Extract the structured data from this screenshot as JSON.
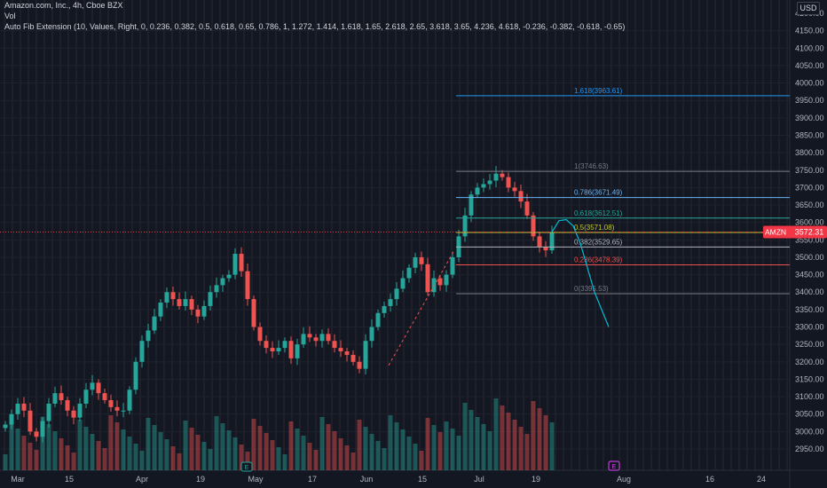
{
  "header": {
    "symbol_line": "Amazon.com, Inc., 4h, Cboe BZX",
    "vol_label": "Vol",
    "indicator_line": "Auto Fib Extension (10, Values, Right, 0, 0.236, 0.382, 0.5, 0.618, 0.65, 0.786, 1, 1.272, 1.414, 1.618, 1.65, 2.618, 2.65, 3.618, 3.65, 4.236, 4.618, -0.236, -0.382, -0.618, -0.65)",
    "currency": "USD"
  },
  "price_axis": {
    "top_label": "4200.00",
    "labels": [
      "4150.00",
      "4100.00",
      "4050.00",
      "4000.00",
      "3950.00",
      "3900.00",
      "3850.00",
      "3800.00",
      "3750.00",
      "3700.00",
      "3650.00",
      "3600.00",
      "3550.00",
      "3500.00",
      "3450.00",
      "3400.00",
      "3350.00",
      "3300.00",
      "3250.00",
      "3200.00",
      "3150.00",
      "3100.00",
      "3050.00",
      "3000.00",
      "2950.00"
    ],
    "current_symbol": "AMZN",
    "current_price": "3572.31"
  },
  "time_axis": {
    "labels": [
      "Mar",
      "15",
      "Apr",
      "19",
      "May",
      "17",
      "Jun",
      "15",
      "Jul",
      "19",
      "Aug",
      "16",
      "24"
    ]
  },
  "chart_data": {
    "type": "candlestick",
    "symbol": "AMZN",
    "interval": "4h",
    "exchange": "Cboe BZX",
    "y_range": [
      2940,
      4220
    ],
    "current_price": 3572.31,
    "approx_closes": [
      3020,
      3050,
      3080,
      3060,
      3000,
      2985,
      3030,
      3080,
      3110,
      3090,
      3060,
      3040,
      3080,
      3120,
      3140,
      3110,
      3090,
      3070,
      3060,
      3060,
      3120,
      3200,
      3260,
      3290,
      3330,
      3370,
      3400,
      3380,
      3360,
      3380,
      3350,
      3330,
      3360,
      3400,
      3420,
      3440,
      3450,
      3510,
      3460,
      3380,
      3300,
      3260,
      3240,
      3230,
      3240,
      3260,
      3210,
      3250,
      3280,
      3270,
      3260,
      3280,
      3260,
      3240,
      3230,
      3220,
      3200,
      3180,
      3260,
      3300,
      3340,
      3360,
      3380,
      3410,
      3440,
      3470,
      3500,
      3480,
      3400,
      3440,
      3420,
      3450,
      3500,
      3560,
      3620,
      3680,
      3700,
      3710,
      3720,
      3740,
      3730,
      3700,
      3690,
      3660,
      3620,
      3560,
      3530,
      3520,
      3572
    ],
    "fib_levels": [
      {
        "ratio": "1.618",
        "price": 3963.61,
        "label": "1.618(3963.61)",
        "color": "#2196f3"
      },
      {
        "ratio": "1",
        "price": 3746.63,
        "label": "1(3746.63)",
        "color": "#787b86"
      },
      {
        "ratio": "0.786",
        "price": 3671.49,
        "label": "0.786(3671.49)",
        "color": "#64b5f6"
      },
      {
        "ratio": "0.618",
        "price": 3612.51,
        "label": "0.618(3612.51)",
        "color": "#26a69a"
      },
      {
        "ratio": "0.5",
        "price": 3571.08,
        "label": "0.5(3571.08)",
        "color": "#c0ca33"
      },
      {
        "ratio": "0.382",
        "price": 3529.65,
        "label": "0.382(3529.65)",
        "color": "#b2b5be"
      },
      {
        "ratio": "0.236",
        "price": 3478.39,
        "label": "0.236(3478.39)",
        "color": "#ef5350"
      },
      {
        "ratio": "0",
        "price": 3395.53,
        "label": "0(3395.53)",
        "color": "#787b86"
      }
    ],
    "projection": {
      "color": "#00bcd4",
      "values": [
        3572,
        3605,
        3608,
        3590,
        3540,
        3470,
        3400,
        3350,
        3300
      ]
    },
    "dashed_trend": {
      "color": "#ef5350",
      "start": 3190,
      "end": 3520
    }
  },
  "colors": {
    "background": "#131722",
    "up": "#26a69a",
    "down": "#ef5350",
    "grid": "#1e222d",
    "axis_text": "#b2b5be",
    "price_tag": "#f23645"
  }
}
